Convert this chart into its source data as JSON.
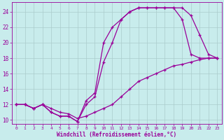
{
  "xlabel": "Windchill (Refroidissement éolien,°C)",
  "bg_color": "#c8ecec",
  "line_color": "#990099",
  "grid_color": "#aacccc",
  "xlim": [
    -0.5,
    23.5
  ],
  "ylim": [
    9.5,
    25.2
  ],
  "xticks": [
    0,
    1,
    2,
    3,
    4,
    5,
    6,
    7,
    8,
    9,
    10,
    11,
    12,
    13,
    14,
    15,
    16,
    17,
    18,
    19,
    20,
    21,
    22,
    23
  ],
  "yticks": [
    10,
    12,
    14,
    16,
    18,
    20,
    22,
    24
  ],
  "line1_x": [
    0,
    1,
    2,
    3,
    4,
    5,
    6,
    7,
    8,
    9,
    10,
    11,
    12,
    13,
    14,
    15,
    16,
    17,
    18,
    19,
    20,
    21,
    22,
    23
  ],
  "line1_y": [
    12,
    12,
    11.5,
    12,
    11,
    10.5,
    10.5,
    9.8,
    12.5,
    13.5,
    20,
    22,
    23,
    24,
    24.5,
    24.5,
    24.5,
    24.5,
    24.5,
    24.5,
    23.5,
    21,
    18.5,
    18
  ],
  "line2_x": [
    0,
    1,
    2,
    3,
    4,
    5,
    6,
    7,
    8,
    9,
    10,
    11,
    12,
    13,
    14,
    15,
    16,
    17,
    18,
    19,
    20,
    21,
    22,
    23
  ],
  "line2_y": [
    12,
    12,
    11.5,
    12,
    11,
    10.5,
    10.5,
    9.8,
    12,
    13,
    17.5,
    20,
    23,
    24,
    24.5,
    24.5,
    24.5,
    24.5,
    24.5,
    23,
    18.5,
    18,
    18,
    18
  ],
  "line3_x": [
    0,
    1,
    2,
    3,
    4,
    5,
    6,
    7,
    8,
    9,
    10,
    11,
    12,
    13,
    14,
    15,
    16,
    17,
    18,
    19,
    20,
    21,
    22,
    23
  ],
  "line3_y": [
    12,
    12,
    11.5,
    12,
    11.5,
    11,
    10.8,
    10.2,
    10.5,
    11,
    11.5,
    12,
    13,
    14,
    15,
    15.5,
    16,
    16.5,
    17,
    17.2,
    17.5,
    17.8,
    18,
    18
  ]
}
